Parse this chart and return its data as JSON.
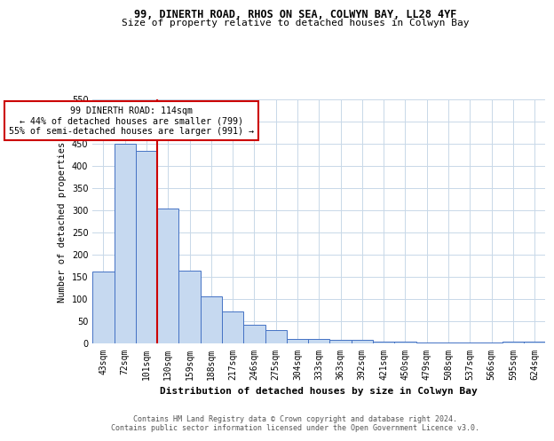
{
  "title1": "99, DINERTH ROAD, RHOS ON SEA, COLWYN BAY, LL28 4YF",
  "title2": "Size of property relative to detached houses in Colwyn Bay",
  "xlabel": "Distribution of detached houses by size in Colwyn Bay",
  "ylabel": "Number of detached properties",
  "categories": [
    "43sqm",
    "72sqm",
    "101sqm",
    "130sqm",
    "159sqm",
    "188sqm",
    "217sqm",
    "246sqm",
    "275sqm",
    "304sqm",
    "333sqm",
    "363sqm",
    "392sqm",
    "421sqm",
    "450sqm",
    "479sqm",
    "508sqm",
    "537sqm",
    "566sqm",
    "595sqm",
    "624sqm"
  ],
  "values": [
    163,
    450,
    435,
    305,
    165,
    107,
    73,
    43,
    31,
    11,
    10,
    9,
    8,
    5,
    4,
    3,
    3,
    2,
    2,
    5,
    4
  ],
  "bar_color": "#c6d9f0",
  "bar_edge_color": "#4472c4",
  "red_line_x": 2.5,
  "annotation_line1": "99 DINERTH ROAD: 114sqm",
  "annotation_line2": "← 44% of detached houses are smaller (799)",
  "annotation_line3": "55% of semi-detached houses are larger (991) →",
  "annotation_box_color": "#ffffff",
  "annotation_box_edge_color": "#cc0000",
  "red_line_color": "#cc0000",
  "ylim_max": 550,
  "yticks": [
    0,
    50,
    100,
    150,
    200,
    250,
    300,
    350,
    400,
    450,
    500,
    550
  ],
  "footer1": "Contains HM Land Registry data © Crown copyright and database right 2024.",
  "footer2": "Contains public sector information licensed under the Open Government Licence v3.0.",
  "background_color": "#ffffff",
  "grid_color": "#c8d8e8"
}
